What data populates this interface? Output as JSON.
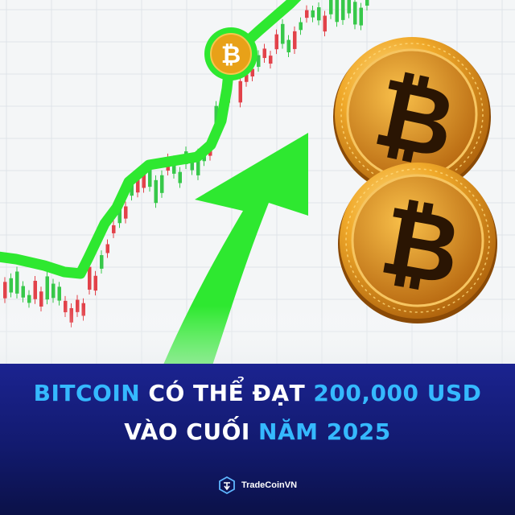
{
  "headline": {
    "line1": {
      "highlight_a": "BITCOIN",
      "text_a": " CÓ THỂ ĐẠT ",
      "highlight_b": "200,000 USD"
    },
    "line2": {
      "text_a": "VÀO CUỐI ",
      "highlight_b": "NĂM 2025"
    }
  },
  "coin_badge": {
    "symbol": "₿"
  },
  "brand": {
    "name": "TradeCoinVN"
  },
  "colors": {
    "banner_top": "#1b2390",
    "banner_bottom": "#0b1148",
    "highlight_text": "#35b9ff",
    "trend_green": "#2ee830",
    "coin_gold": "#e09a1c"
  }
}
